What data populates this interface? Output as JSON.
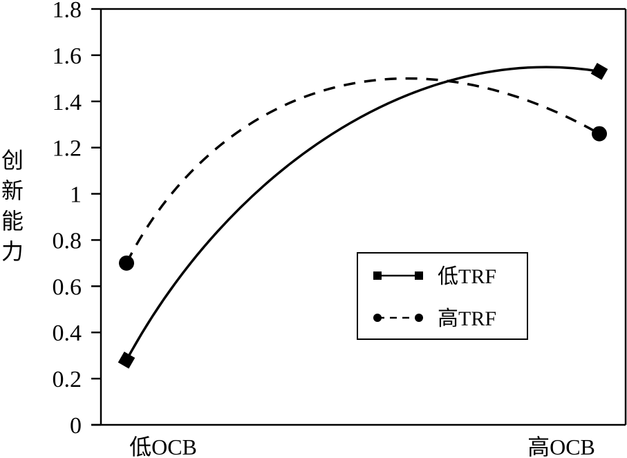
{
  "chart_data": {
    "type": "line",
    "title": "",
    "xlabel": "",
    "ylabel": "创新能力",
    "categories": [
      "低OCB",
      "高OCB"
    ],
    "series": [
      {
        "name": "低TRF",
        "values": [
          0.28,
          1.53
        ],
        "line_style": "solid",
        "marker": "square"
      },
      {
        "name": "高TRF",
        "values": [
          0.7,
          1.26
        ],
        "line_style": "dashed",
        "marker": "circle"
      }
    ],
    "ylim": [
      0,
      1.8
    ],
    "yticks": [
      "0",
      "0.2",
      "0.4",
      "0.6",
      "0.8",
      "1",
      "1.2",
      "1.4",
      "1.6",
      "1.8"
    ],
    "grid": false,
    "legend_position": "lower-right-inside",
    "curve_shape": "smooth (curved connecting lines with interior peak)",
    "colors": {
      "line": "#000000",
      "background": "#ffffff"
    }
  },
  "axis": {
    "ylabel_chars": [
      "创",
      "新",
      "能",
      "力"
    ]
  },
  "legend": {
    "items": [
      {
        "label": "低TRF"
      },
      {
        "label": "高TRF"
      }
    ]
  }
}
